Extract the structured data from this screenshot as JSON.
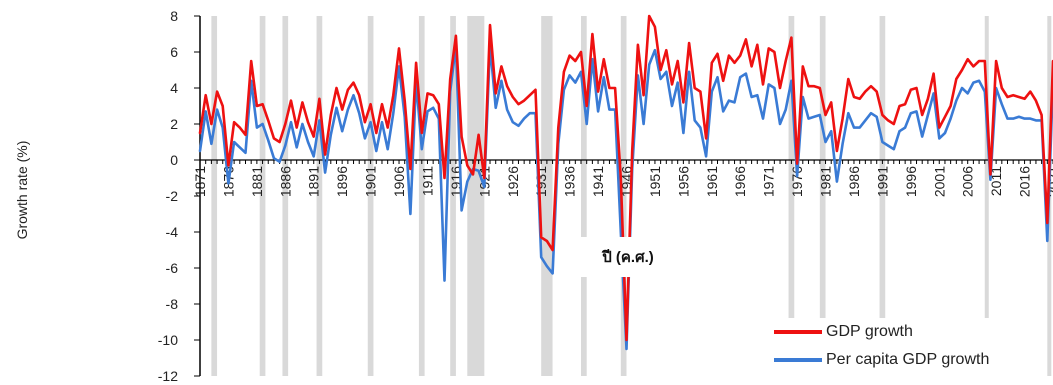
{
  "chart_data": {
    "type": "line",
    "ylabel": "Growth rate (%)",
    "xlabel": "ปี (ค.ศ.)",
    "ylim": [
      -12,
      8
    ],
    "yticks": [
      8,
      6,
      4,
      2,
      0,
      -2,
      -4,
      -6,
      -8,
      -10,
      -12
    ],
    "xlim": [
      1871,
      2021
    ],
    "xticks": [
      1871,
      1876,
      1881,
      1886,
      1891,
      1896,
      1901,
      1906,
      1911,
      1916,
      1921,
      1926,
      1931,
      1936,
      1941,
      1946,
      1951,
      1956,
      1961,
      1966,
      1971,
      1976,
      1981,
      1986,
      1991,
      1996,
      2001,
      2006,
      2011,
      2016,
      2021
    ],
    "legend_position": "bottom-right",
    "shaded_periods": [
      [
        1873,
        1874
      ],
      [
        1881.5,
        1882.5
      ],
      [
        1885.5,
        1886.5
      ],
      [
        1891.5,
        1892.5
      ],
      [
        1900.5,
        1901.5
      ],
      [
        1909.5,
        1910.5
      ],
      [
        1915,
        1916
      ],
      [
        1918,
        1921
      ],
      [
        1931,
        1933
      ],
      [
        1938,
        1939
      ],
      [
        1945,
        1946
      ],
      [
        1974.5,
        1975.5
      ],
      [
        1980,
        1981
      ],
      [
        1990.5,
        1991.5
      ],
      [
        2009,
        2009.5
      ],
      [
        2020,
        2020.5
      ]
    ],
    "series": [
      {
        "name": "GDP growth",
        "color": "#ee1111",
        "x": [
          1871,
          1872,
          1873,
          1874,
          1875,
          1876,
          1877,
          1878,
          1879,
          1880,
          1881,
          1882,
          1883,
          1884,
          1885,
          1886,
          1887,
          1888,
          1889,
          1890,
          1891,
          1892,
          1893,
          1894,
          1895,
          1896,
          1897,
          1898,
          1899,
          1900,
          1901,
          1902,
          1903,
          1904,
          1905,
          1906,
          1907,
          1908,
          1909,
          1910,
          1911,
          1912,
          1913,
          1914,
          1915,
          1916,
          1917,
          1918,
          1919,
          1920,
          1921,
          1922,
          1923,
          1924,
          1925,
          1926,
          1927,
          1928,
          1929,
          1930,
          1931,
          1932,
          1933,
          1934,
          1935,
          1936,
          1937,
          1938,
          1939,
          1940,
          1941,
          1942,
          1943,
          1944,
          1945,
          1946,
          1947,
          1948,
          1949,
          1950,
          1951,
          1952,
          1953,
          1954,
          1955,
          1956,
          1957,
          1958,
          1959,
          1960,
          1961,
          1962,
          1963,
          1964,
          1965,
          1966,
          1967,
          1968,
          1969,
          1970,
          1971,
          1972,
          1973,
          1974,
          1975,
          1976,
          1977,
          1978,
          1979,
          1980,
          1981,
          1982,
          1983,
          1984,
          1985,
          1986,
          1987,
          1988,
          1989,
          1990,
          1991,
          1992,
          1993,
          1994,
          1995,
          1996,
          1997,
          1998,
          1999,
          2000,
          2001,
          2002,
          2003,
          2004,
          2005,
          2006,
          2007,
          2008,
          2009,
          2010,
          2011,
          2012,
          2013,
          2014,
          2015,
          2016,
          2017,
          2018,
          2019,
          2020,
          2021
        ],
        "values": [
          1.5,
          3.6,
          2.0,
          3.8,
          3.0,
          -0.3,
          2.1,
          1.8,
          1.4,
          5.5,
          3.0,
          3.1,
          2.2,
          1.2,
          1.0,
          2.0,
          3.3,
          1.8,
          3.2,
          2.1,
          1.3,
          3.4,
          0.3,
          2.5,
          4.0,
          2.8,
          3.9,
          4.3,
          3.6,
          2.1,
          3.1,
          1.5,
          3.1,
          1.8,
          3.6,
          6.2,
          3.3,
          -0.5,
          5.4,
          1.5,
          3.7,
          3.6,
          3.1,
          -1.0,
          4.5,
          6.9,
          1.3,
          -0.3,
          -0.8,
          1.4,
          -1.0,
          7.5,
          3.7,
          5.2,
          4.1,
          3.5,
          3.1,
          3.3,
          3.6,
          3.9,
          -4.3,
          -4.5,
          -5.0,
          1.8,
          4.9,
          5.8,
          5.5,
          6.0,
          3.0,
          7.0,
          3.8,
          5.6,
          4.0,
          4.0,
          -1.0,
          -10.0,
          0.5,
          6.4,
          3.6,
          8.0,
          7.4,
          5.0,
          6.1,
          4.2,
          5.5,
          3.2,
          6.5,
          4.0,
          3.8,
          1.2,
          5.4,
          5.9,
          4.4,
          5.8,
          5.4,
          5.8,
          6.7,
          5.2,
          6.4,
          4.2,
          6.2,
          6.0,
          4.0,
          5.5,
          6.8,
          -0.2,
          5.2,
          4.1,
          4.1,
          4.0,
          2.5,
          3.2,
          0.5,
          2.3,
          4.5,
          3.5,
          3.4,
          3.8,
          4.1,
          3.8,
          2.5,
          2.2,
          2.0,
          3.0,
          3.1,
          3.9,
          4.0,
          2.5,
          3.4,
          4.8,
          1.8,
          2.4,
          3.0,
          4.5,
          5.0,
          5.6,
          5.2,
          5.5,
          5.5,
          -0.8,
          5.5,
          4.0,
          3.5,
          3.6,
          3.5,
          3.4,
          3.8,
          3.3,
          2.5,
          -3.5,
          5.5
        ]
      },
      {
        "name": "Per capita GDP growth",
        "color": "#3a7bd5",
        "x": [
          1871,
          1872,
          1873,
          1874,
          1875,
          1876,
          1877,
          1878,
          1879,
          1880,
          1881,
          1882,
          1883,
          1884,
          1885,
          1886,
          1887,
          1888,
          1889,
          1890,
          1891,
          1892,
          1893,
          1894,
          1895,
          1896,
          1897,
          1898,
          1899,
          1900,
          1901,
          1902,
          1903,
          1904,
          1905,
          1906,
          1907,
          1908,
          1909,
          1910,
          1911,
          1912,
          1913,
          1914,
          1915,
          1916,
          1917,
          1918,
          1919,
          1920,
          1921,
          1922,
          1923,
          1924,
          1925,
          1926,
          1927,
          1928,
          1929,
          1930,
          1931,
          1932,
          1933,
          1934,
          1935,
          1936,
          1937,
          1938,
          1939,
          1940,
          1941,
          1942,
          1943,
          1944,
          1945,
          1946,
          1947,
          1948,
          1949,
          1950,
          1951,
          1952,
          1953,
          1954,
          1955,
          1956,
          1957,
          1958,
          1959,
          1960,
          1961,
          1962,
          1963,
          1964,
          1965,
          1966,
          1967,
          1968,
          1969,
          1970,
          1971,
          1972,
          1973,
          1974,
          1975,
          1976,
          1977,
          1978,
          1979,
          1980,
          1981,
          1982,
          1983,
          1984,
          1985,
          1986,
          1987,
          1988,
          1989,
          1990,
          1991,
          1992,
          1993,
          1994,
          1995,
          1996,
          1997,
          1998,
          1999,
          2000,
          2001,
          2002,
          2003,
          2004,
          2005,
          2006,
          2007,
          2008,
          2009,
          2010,
          2011,
          2012,
          2013,
          2014,
          2015,
          2016,
          2017,
          2018,
          2019,
          2020,
          2021
        ],
        "values": [
          0.5,
          2.7,
          0.9,
          2.8,
          1.8,
          -1.3,
          1.0,
          0.7,
          0.4,
          4.4,
          1.8,
          2.0,
          1.1,
          0.1,
          -0.1,
          0.8,
          2.1,
          0.7,
          2.0,
          1.0,
          0.2,
          2.2,
          -0.7,
          1.4,
          2.9,
          1.6,
          2.8,
          3.6,
          2.6,
          1.2,
          2.1,
          0.5,
          2.1,
          0.6,
          2.6,
          5.2,
          2.4,
          -3.0,
          4.4,
          0.6,
          2.7,
          2.9,
          2.3,
          -6.7,
          3.8,
          6.4,
          -2.8,
          -1.2,
          -0.5,
          -0.6,
          -1.5,
          6.4,
          2.9,
          4.4,
          2.8,
          2.1,
          1.9,
          2.3,
          2.6,
          2.6,
          -5.4,
          -5.9,
          -6.3,
          0.9,
          3.9,
          4.7,
          4.3,
          4.9,
          2.0,
          5.6,
          2.7,
          4.6,
          2.8,
          2.8,
          -4.0,
          -10.5,
          -0.5,
          4.7,
          2.0,
          5.3,
          6.1,
          4.5,
          4.9,
          3.0,
          4.3,
          1.5,
          4.9,
          2.2,
          1.8,
          0.2,
          3.8,
          4.6,
          2.7,
          3.3,
          3.2,
          4.6,
          4.8,
          3.5,
          3.6,
          2.3,
          4.2,
          4.0,
          2.0,
          2.8,
          4.4,
          -0.9,
          3.5,
          2.3,
          2.4,
          2.5,
          1.0,
          1.6,
          -1.2,
          0.9,
          2.6,
          1.8,
          1.8,
          2.2,
          2.6,
          2.4,
          1.0,
          0.8,
          0.6,
          1.6,
          1.8,
          2.6,
          2.7,
          1.3,
          2.5,
          3.7,
          1.2,
          1.5,
          2.3,
          3.3,
          4.0,
          3.7,
          4.3,
          4.4,
          3.8,
          -1.1,
          4.0,
          3.1,
          2.3,
          2.3,
          2.4,
          2.3,
          2.3,
          2.2,
          2.2,
          -4.5,
          4.4
        ]
      }
    ]
  }
}
